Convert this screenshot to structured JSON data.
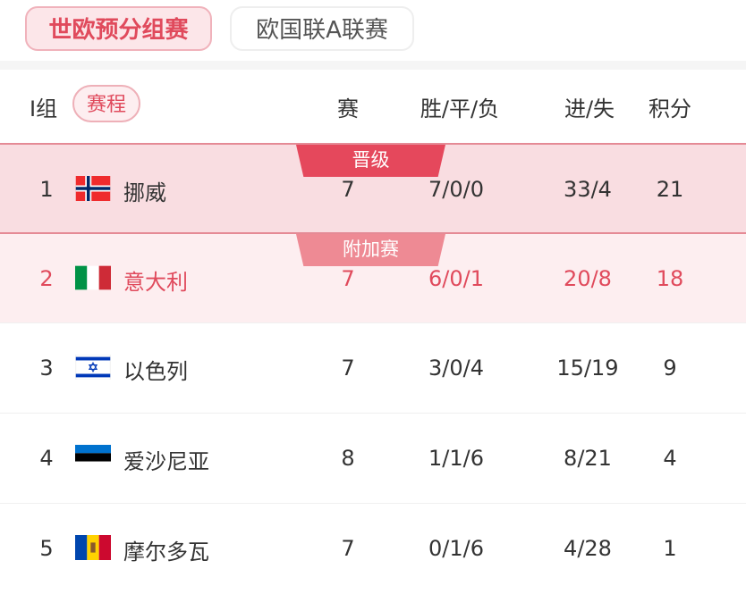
{
  "tabs": [
    {
      "label": "世欧预分组赛",
      "active": true
    },
    {
      "label": "欧国联A联赛",
      "active": false
    }
  ],
  "header": {
    "group": "I组",
    "schedule": "赛程",
    "played": "赛",
    "wdl": "胜/平/负",
    "goals": "进/失",
    "points": "积分"
  },
  "colors": {
    "accent": "#e04a5c",
    "qualify": "#e5485c",
    "playoff": "#ee8a94"
  },
  "rows": [
    {
      "rank": "1",
      "team": "挪威",
      "flag": "norway-flag",
      "played": "7",
      "wdl": "7/0/0",
      "goals": "33/4",
      "points": "21",
      "badge": "晋级"
    },
    {
      "rank": "2",
      "team": "意大利",
      "flag": "italy-flag",
      "played": "7",
      "wdl": "6/0/1",
      "goals": "20/8",
      "points": "18",
      "badge": "附加赛"
    },
    {
      "rank": "3",
      "team": "以色列",
      "flag": "israel-flag",
      "played": "7",
      "wdl": "3/0/4",
      "goals": "15/19",
      "points": "9"
    },
    {
      "rank": "4",
      "team": "爱沙尼亚",
      "flag": "estonia-flag",
      "played": "8",
      "wdl": "1/1/6",
      "goals": "8/21",
      "points": "4"
    },
    {
      "rank": "5",
      "team": "摩尔多瓦",
      "flag": "moldova-flag",
      "played": "7",
      "wdl": "0/1/6",
      "goals": "4/28",
      "points": "1"
    }
  ]
}
